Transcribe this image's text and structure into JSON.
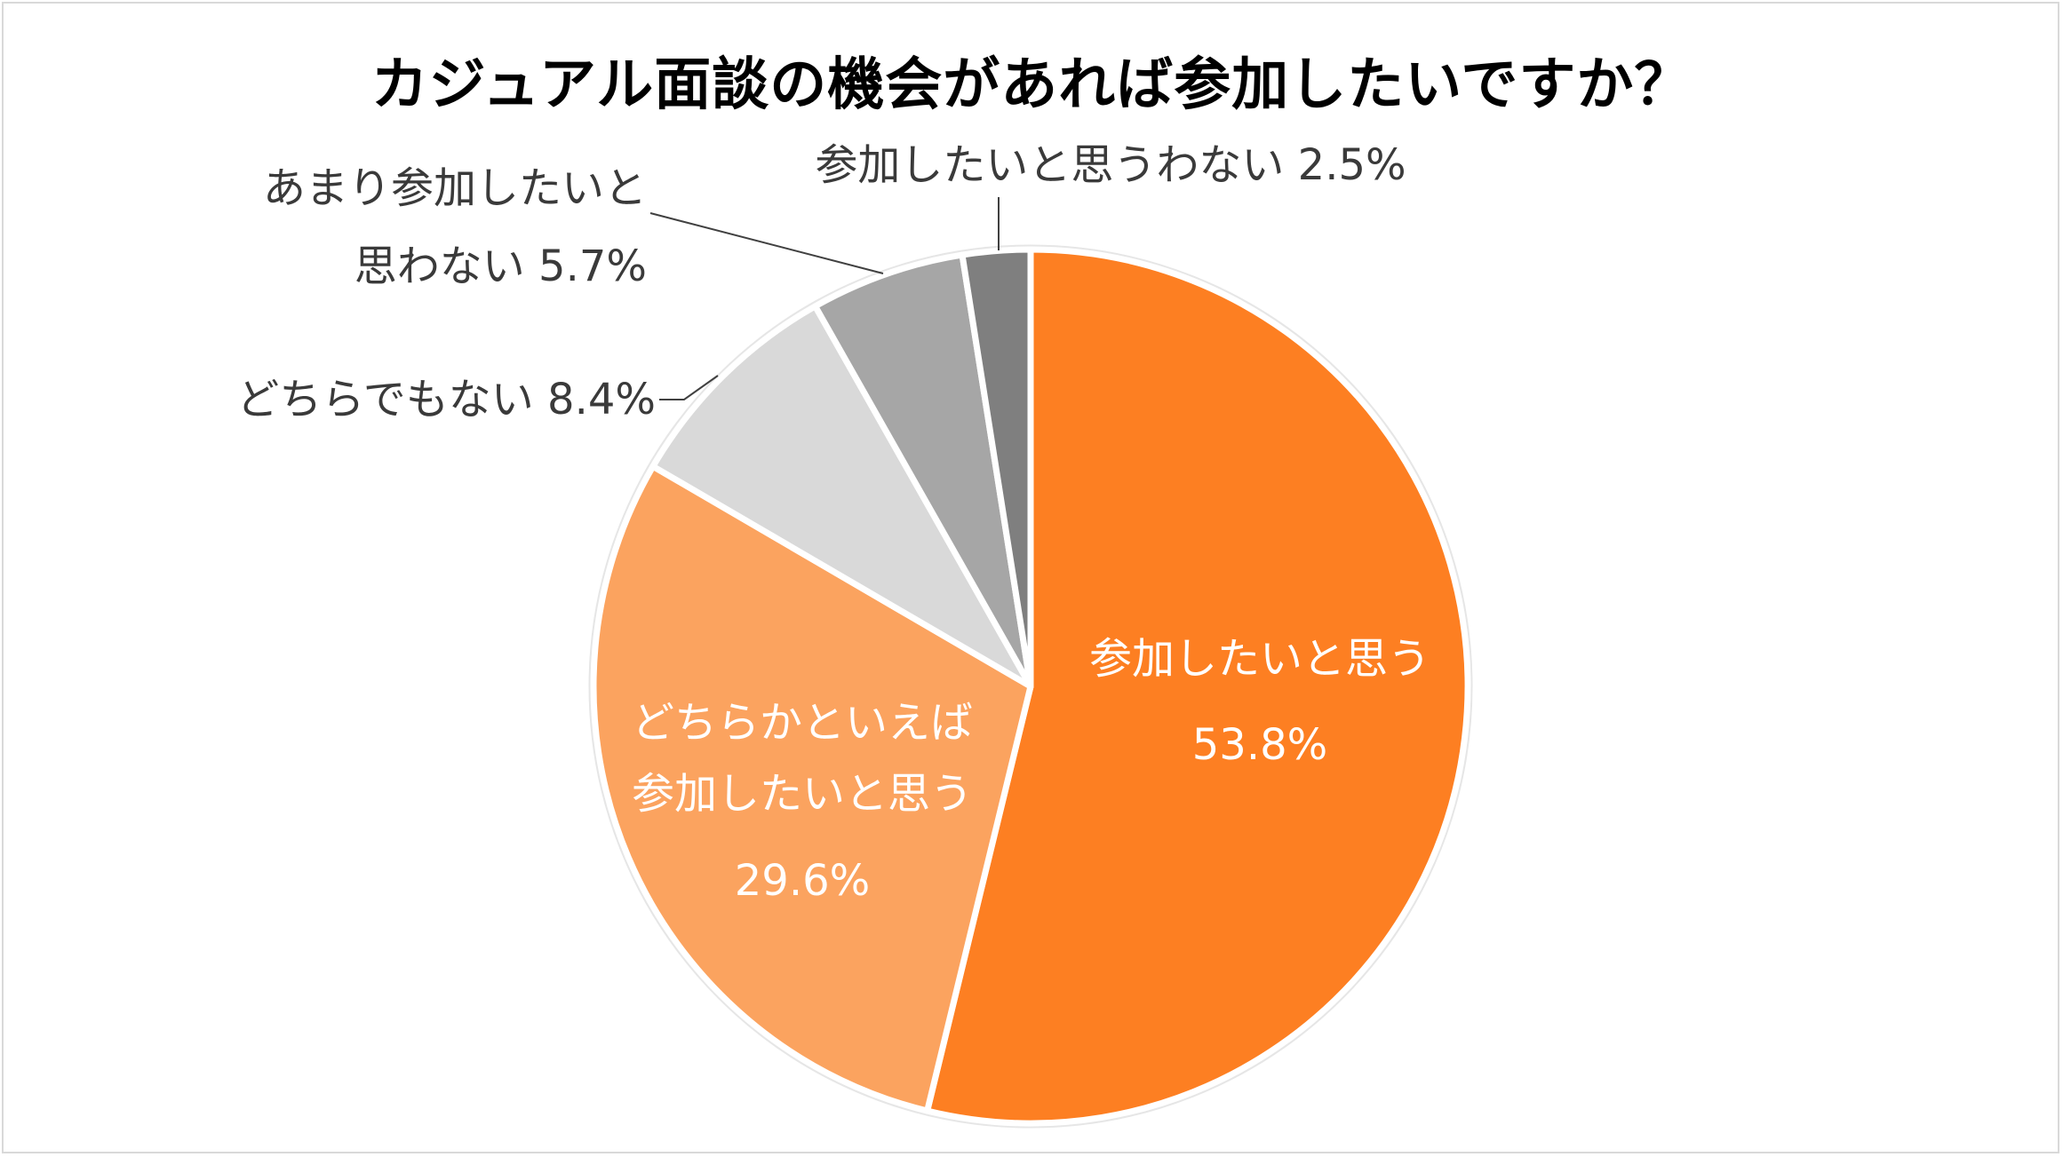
{
  "chart_data": {
    "type": "pie",
    "title": "カジュアル面談の機会があれば参加したいですか？",
    "slices": [
      {
        "label_lines": [
          "参加したいと思う",
          "53.8%"
        ],
        "value": 53.8,
        "color": "#fd7f22",
        "label_inside": true
      },
      {
        "label_lines": [
          "どちらかといえば",
          "参加したいと思う",
          "29.6%"
        ],
        "value": 29.6,
        "color": "#fba35f",
        "label_inside": true
      },
      {
        "label_lines": [
          "どちらでもない 8.4%"
        ],
        "value": 8.4,
        "color": "#d9d9d9",
        "label_inside": false
      },
      {
        "label_lines": [
          "あまり参加したいと",
          "思わない 5.7%"
        ],
        "value": 5.7,
        "color": "#a6a6a6",
        "label_inside": false
      },
      {
        "label_lines": [
          "参加したいと思うわない 2.5%"
        ],
        "value": 2.5,
        "color": "#7f7f7f",
        "label_inside": false
      }
    ],
    "start_angle": "12 o'clock",
    "direction": "clockwise"
  }
}
